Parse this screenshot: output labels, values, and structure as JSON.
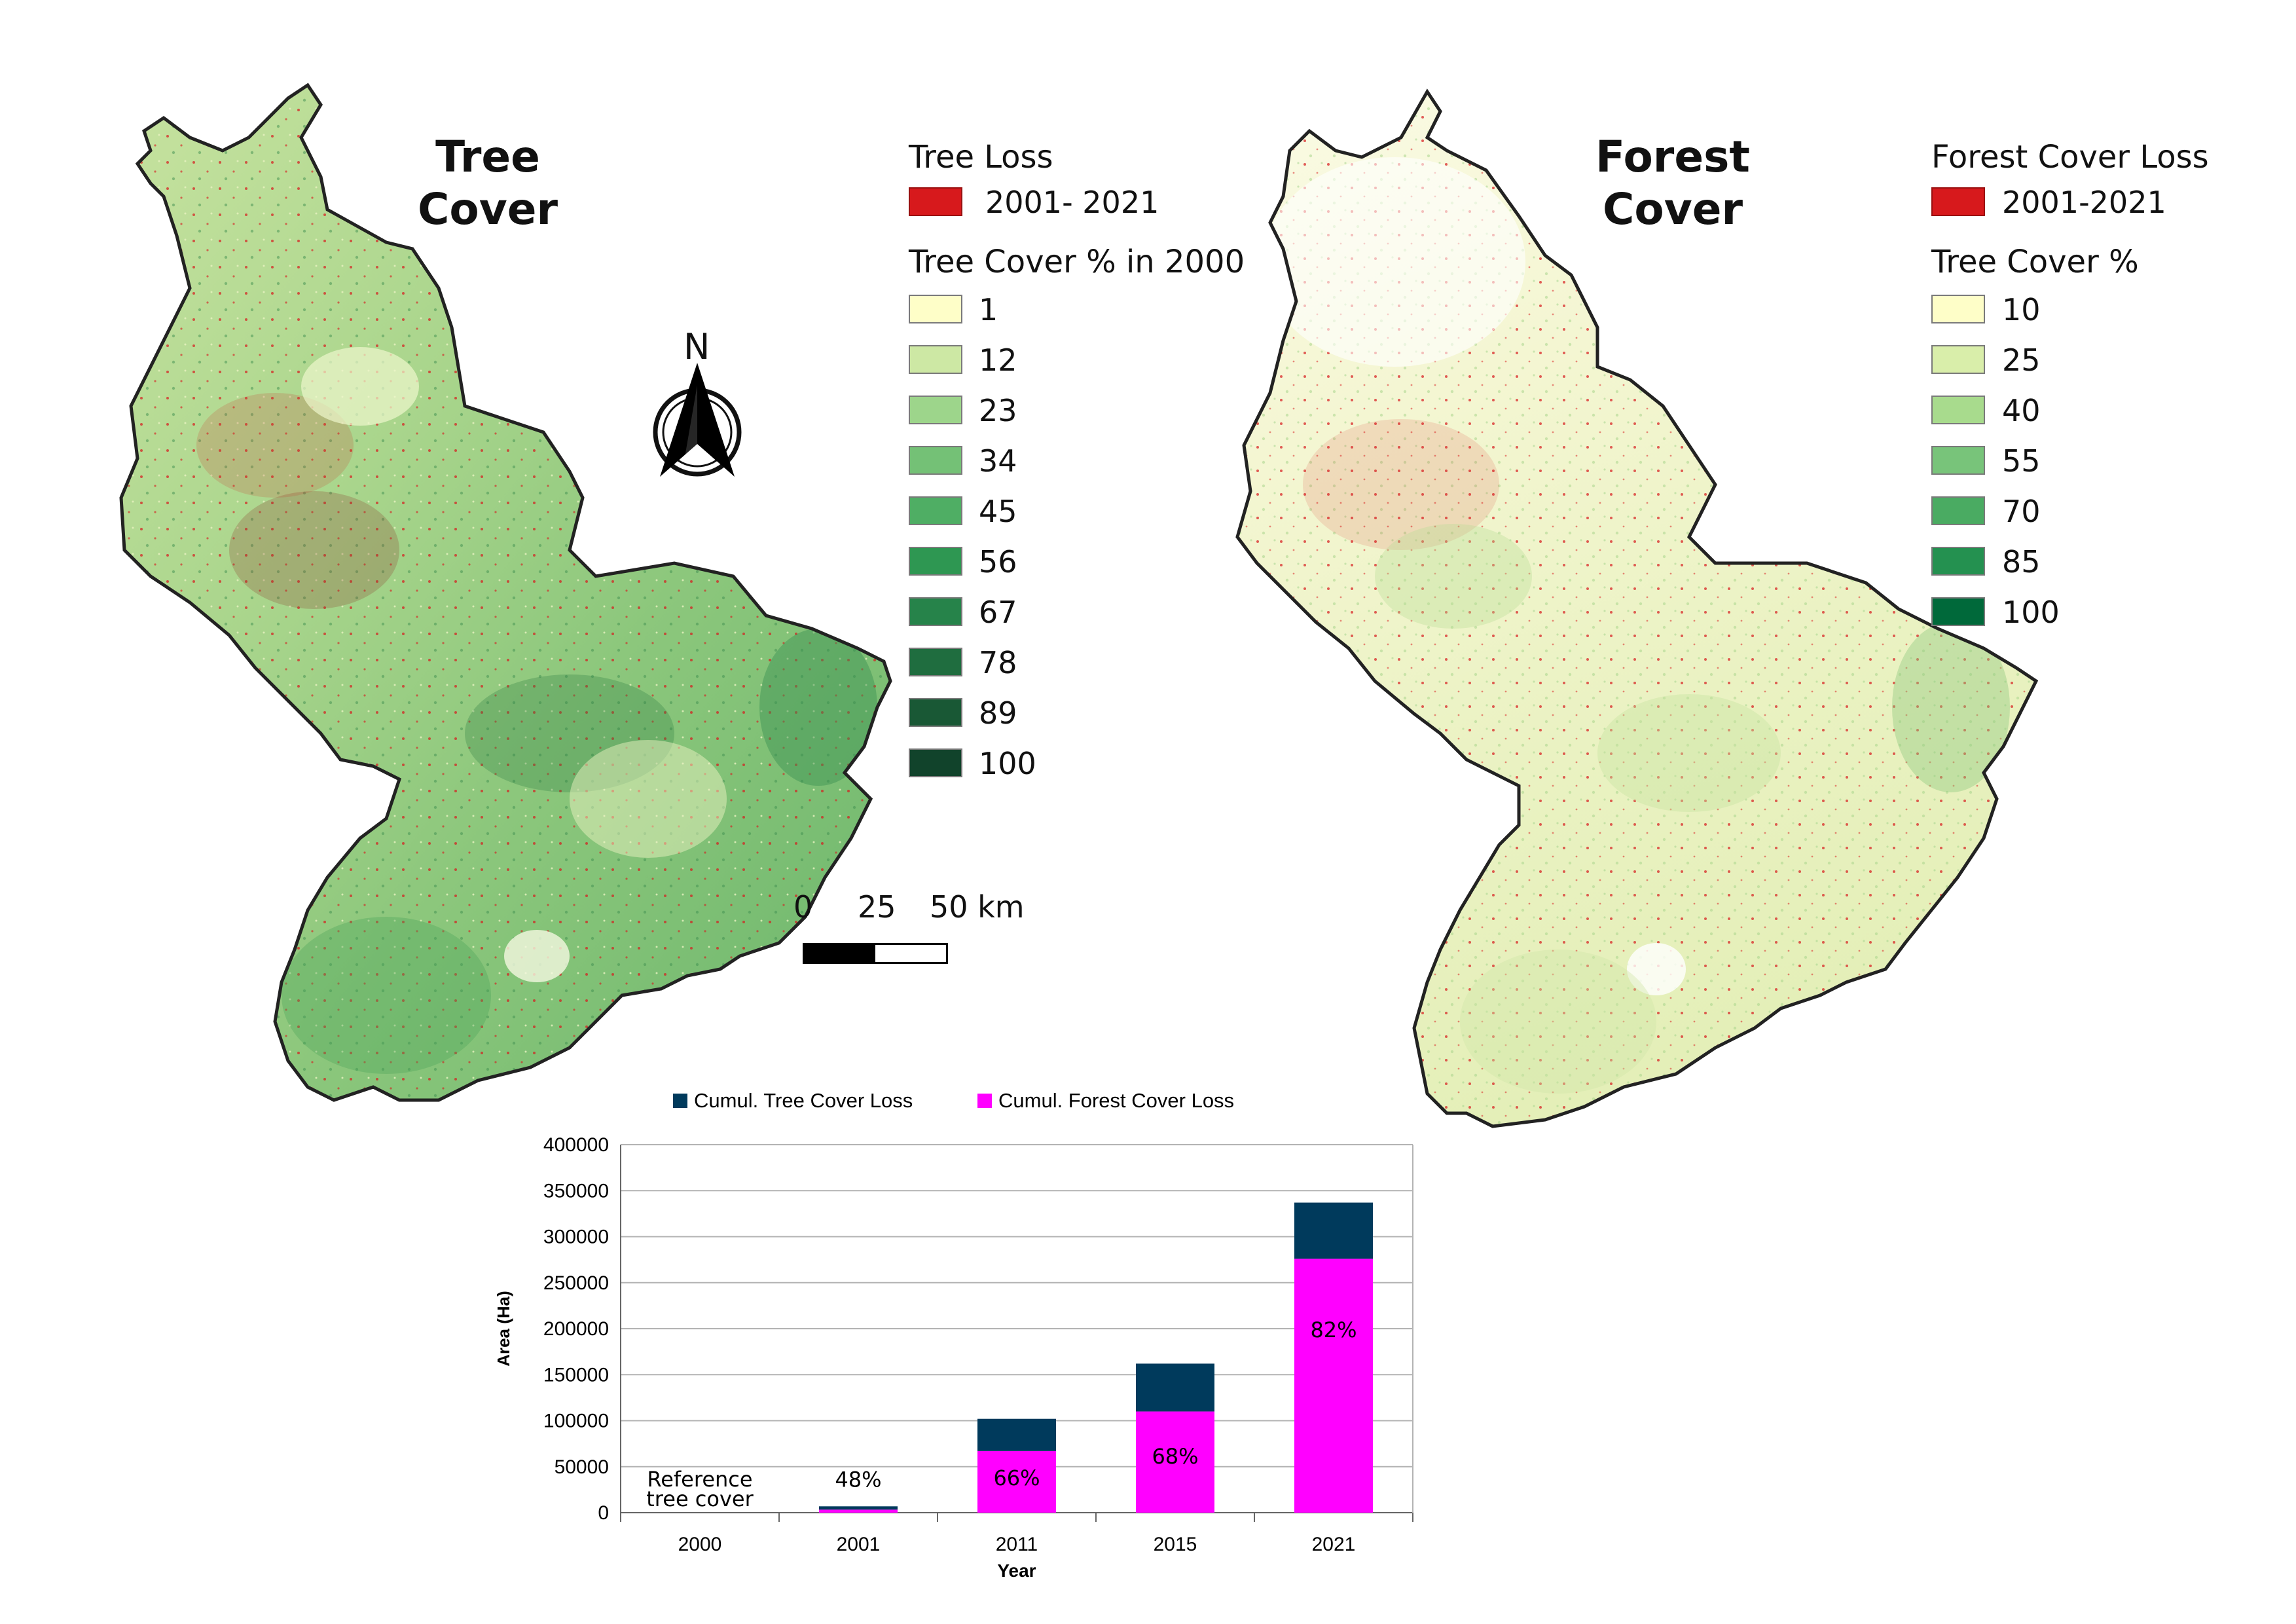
{
  "left_map": {
    "title_line1": "Tree",
    "title_line2": "Cover",
    "loss_legend_title": "Tree Loss",
    "loss_label": "2001- 2021",
    "cover_legend_title": "Tree Cover % in 2000",
    "cover_classes": [
      {
        "label": "1",
        "color": "#fefec8"
      },
      {
        "label": "12",
        "color": "#cde8a4"
      },
      {
        "label": "23",
        "color": "#9dd58b"
      },
      {
        "label": "34",
        "color": "#74c176"
      },
      {
        "label": "45",
        "color": "#4fae64"
      },
      {
        "label": "56",
        "color": "#2e9752"
      },
      {
        "label": "67",
        "color": "#26834a"
      },
      {
        "label": "78",
        "color": "#1f6d3f"
      },
      {
        "label": "89",
        "color": "#195835"
      },
      {
        "label": "100",
        "color": "#11432b"
      }
    ],
    "north_label": "N",
    "scale_labels": [
      "0",
      "25",
      "50 km"
    ]
  },
  "right_map": {
    "title_line1": "Forest",
    "title_line2": "Cover",
    "loss_legend_title": "Forest Cover Loss",
    "loss_label": "2001-2021",
    "cover_legend_title": "Tree Cover %",
    "cover_classes": [
      {
        "label": "10",
        "color": "#fefec8"
      },
      {
        "label": "25",
        "color": "#d9eeaa"
      },
      {
        "label": "40",
        "color": "#a8db8d"
      },
      {
        "label": "55",
        "color": "#78c47a"
      },
      {
        "label": "70",
        "color": "#4aab62"
      },
      {
        "label": "85",
        "color": "#249150"
      },
      {
        "label": "100",
        "color": "#00693a"
      }
    ]
  },
  "colors": {
    "loss_red": "#d7191c",
    "tree_loss_bar": "#003a5c",
    "forest_loss_bar": "#ff00ff"
  },
  "chart_data": {
    "type": "bar",
    "stacked": true,
    "categories": [
      "2000",
      "2001",
      "2011",
      "2015",
      "2021"
    ],
    "series": [
      {
        "name": "Cumul. Forest Cover Loss",
        "color": "#ff00ff",
        "values": [
          0,
          3300,
          67000,
          110000,
          276000
        ]
      },
      {
        "name": "Cumul. Tree Cover Loss",
        "color": "#003a5c",
        "values": [
          0,
          3600,
          35000,
          52000,
          61000
        ]
      }
    ],
    "totals": [
      0,
      6900,
      102000,
      162000,
      337000
    ],
    "bar_labels": [
      "",
      "48%",
      "66%",
      "68%",
      "82%"
    ],
    "annotation_line1": "Reference",
    "annotation_line2": "tree cover",
    "xlabel": "Year",
    "ylabel": "Area (Ha)",
    "ylim": [
      0,
      400000
    ],
    "yticks": [
      0,
      50000,
      100000,
      150000,
      200000,
      250000,
      300000,
      350000,
      400000
    ],
    "grid": true,
    "legend_position": "top"
  }
}
